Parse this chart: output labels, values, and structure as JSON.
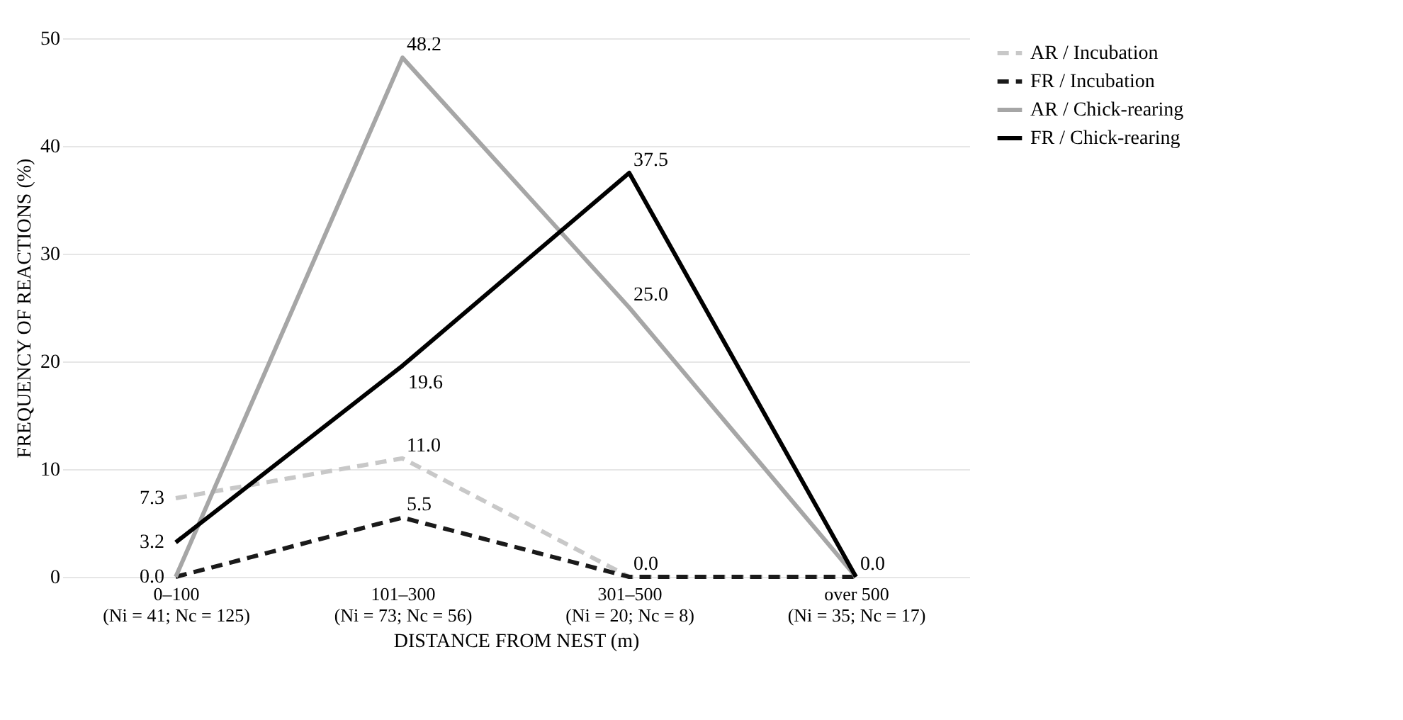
{
  "chart_data": {
    "type": "line",
    "xlabel": "DISTANCE FROM NEST (m)",
    "ylabel": "FREQUENCY OF REACTIONS (%)",
    "categories": [
      "0–100\n(Ni = 41; Nc = 125)",
      "101–300\n(Ni = 73; Nc = 56)",
      "301–500\n(Ni = 20; Nc = 8)",
      "over 500\n(Ni = 35; Nc = 17)"
    ],
    "series": [
      {
        "name": "AR / Incubation",
        "color": "#c8c8c8",
        "line_style": "dashed",
        "values": [
          7.3,
          11.0,
          0.0,
          0.0
        ],
        "value_labels": [
          "7.3",
          "11.0",
          null,
          null
        ]
      },
      {
        "name": "FR / Incubation",
        "color": "#1a1a1a",
        "line_style": "dashed",
        "values": [
          0.0,
          5.5,
          0.0,
          0.0
        ],
        "value_labels": [
          "0.0",
          "5.5",
          "0.0",
          null
        ]
      },
      {
        "name": "AR / Chick-rearing",
        "color": "#a6a6a6",
        "line_style": "solid",
        "values": [
          0.0,
          48.2,
          25.0,
          0.0
        ],
        "value_labels": [
          null,
          "48.2",
          "25.0",
          null
        ]
      },
      {
        "name": "FR / Chick-rearing",
        "color": "#000000",
        "line_style": "solid",
        "values": [
          3.2,
          19.6,
          37.5,
          0.0
        ],
        "value_labels": [
          "3.2",
          "19.6",
          "37.5",
          "0.0"
        ]
      }
    ],
    "ylim": [
      0,
      50
    ],
    "yticks": [
      0,
      10,
      20,
      30,
      40,
      50
    ],
    "grid": "y",
    "legend": "right",
    "marker": "none"
  }
}
